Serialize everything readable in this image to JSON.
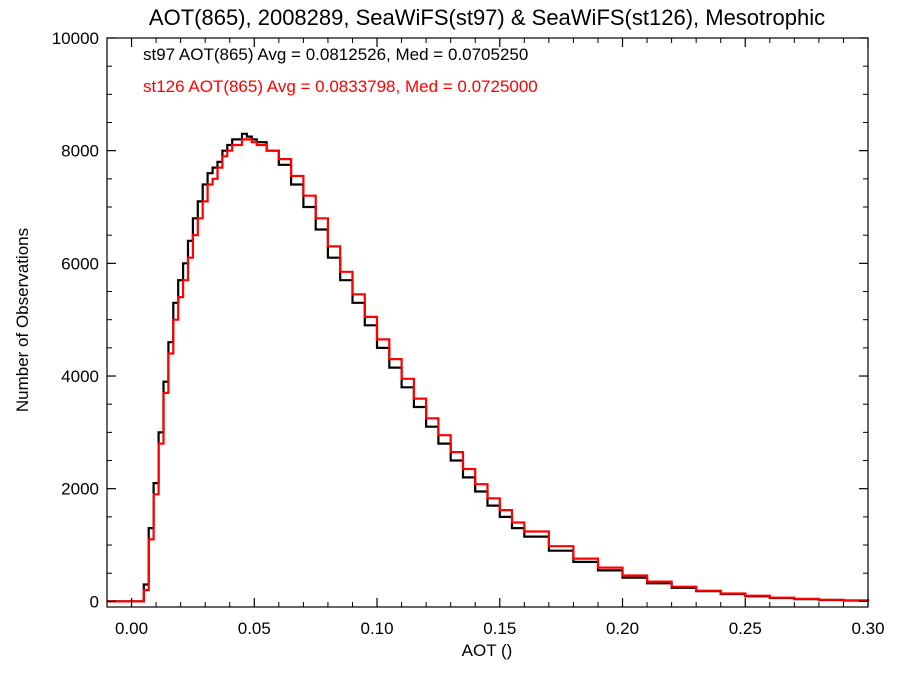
{
  "chart_data": {
    "type": "line",
    "step": true,
    "title": "AOT(865), 2008289, SeaWiFS(st97) & SeaWiFS(st126), Mesotrophic",
    "xlabel": "AOT ()",
    "ylabel": "Number of Observations",
    "xlim": [
      -0.01,
      0.3
    ],
    "ylim": [
      -100,
      10000
    ],
    "xticks": [
      0.0,
      0.05,
      0.1,
      0.15,
      0.2,
      0.25,
      0.3
    ],
    "xtick_labels": [
      "0.00",
      "0.05",
      "0.10",
      "0.15",
      "0.20",
      "0.25",
      "0.30"
    ],
    "yticks": [
      0,
      2000,
      4000,
      6000,
      8000,
      10000
    ],
    "ytick_labels": [
      "0",
      "2000",
      "4000",
      "6000",
      "8000",
      "10000"
    ],
    "grid": false,
    "legend_position": "top-left",
    "annotations": [
      {
        "text": "st97 AOT(865) Avg = 0.0812526, Med = 0.0705250",
        "color": "#000000"
      },
      {
        "text": "st126 AOT(865) Avg = 0.0833798, Med = 0.0725000",
        "color": "#ff0000"
      }
    ],
    "series": [
      {
        "color": "#000000",
        "x": [
          -0.01,
          0.0,
          0.003,
          0.005,
          0.007,
          0.009,
          0.011,
          0.013,
          0.015,
          0.017,
          0.019,
          0.021,
          0.023,
          0.025,
          0.027,
          0.029,
          0.031,
          0.033,
          0.035,
          0.037,
          0.039,
          0.041,
          0.043,
          0.045,
          0.047,
          0.049,
          0.051,
          0.055,
          0.06,
          0.065,
          0.07,
          0.075,
          0.08,
          0.085,
          0.09,
          0.095,
          0.1,
          0.105,
          0.11,
          0.115,
          0.12,
          0.125,
          0.13,
          0.135,
          0.14,
          0.145,
          0.15,
          0.155,
          0.16,
          0.17,
          0.18,
          0.19,
          0.2,
          0.21,
          0.22,
          0.23,
          0.24,
          0.25,
          0.26,
          0.27,
          0.28,
          0.29,
          0.3
        ],
        "values": [
          0,
          0,
          0,
          300,
          1300,
          2100,
          3000,
          3900,
          4600,
          5300,
          5700,
          6000,
          6400,
          6800,
          7100,
          7400,
          7600,
          7700,
          7800,
          8000,
          8100,
          8200,
          8200,
          8300,
          8250,
          8200,
          8150,
          8000,
          7750,
          7400,
          7000,
          6600,
          6100,
          5700,
          5300,
          4900,
          4500,
          4150,
          3800,
          3450,
          3100,
          2800,
          2500,
          2200,
          1950,
          1700,
          1500,
          1300,
          1150,
          900,
          700,
          550,
          420,
          320,
          240,
          180,
          130,
          90,
          60,
          40,
          25,
          15,
          5
        ]
      },
      {
        "color": "#ff0000",
        "x": [
          -0.01,
          0.0,
          0.003,
          0.005,
          0.007,
          0.009,
          0.011,
          0.013,
          0.015,
          0.017,
          0.019,
          0.021,
          0.023,
          0.025,
          0.027,
          0.029,
          0.031,
          0.033,
          0.035,
          0.037,
          0.039,
          0.041,
          0.043,
          0.045,
          0.047,
          0.049,
          0.051,
          0.055,
          0.06,
          0.065,
          0.07,
          0.075,
          0.08,
          0.085,
          0.09,
          0.095,
          0.1,
          0.105,
          0.11,
          0.115,
          0.12,
          0.125,
          0.13,
          0.135,
          0.14,
          0.145,
          0.15,
          0.155,
          0.16,
          0.17,
          0.18,
          0.19,
          0.2,
          0.21,
          0.22,
          0.23,
          0.24,
          0.25,
          0.26,
          0.27,
          0.28,
          0.29,
          0.3
        ],
        "values": [
          0,
          0,
          0,
          200,
          1100,
          1900,
          2800,
          3700,
          4400,
          5000,
          5400,
          5700,
          6100,
          6500,
          6800,
          7100,
          7400,
          7500,
          7700,
          7900,
          8000,
          8100,
          8100,
          8200,
          8200,
          8150,
          8100,
          8000,
          7850,
          7550,
          7200,
          6800,
          6300,
          5850,
          5450,
          5050,
          4650,
          4300,
          3950,
          3600,
          3250,
          2950,
          2650,
          2350,
          2080,
          1830,
          1620,
          1400,
          1240,
          980,
          760,
          600,
          460,
          350,
          260,
          190,
          140,
          100,
          65,
          45,
          28,
          16,
          5
        ]
      }
    ]
  }
}
